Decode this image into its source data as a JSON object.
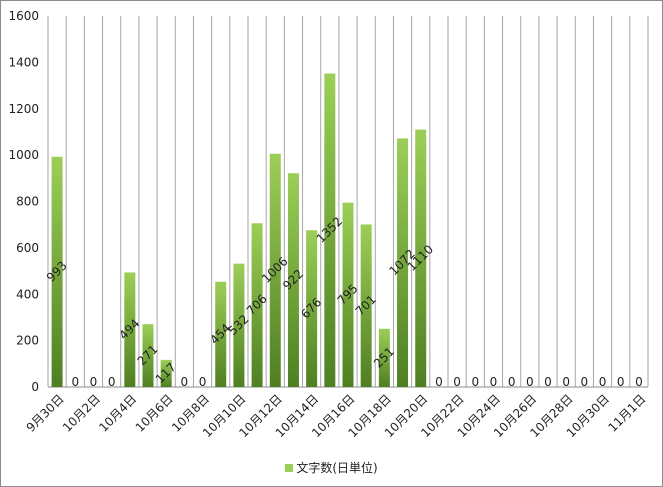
{
  "chart_data": {
    "type": "bar",
    "categories": [
      "9月30日",
      "10月1日",
      "10月2日",
      "10月3日",
      "10月4日",
      "10月5日",
      "10月6日",
      "10月7日",
      "10月8日",
      "10月9日",
      "10月10日",
      "10月11日",
      "10月12日",
      "10月13日",
      "10月14日",
      "10月15日",
      "10月16日",
      "10月17日",
      "10月18日",
      "10月19日",
      "10月20日",
      "10月21日",
      "10月22日",
      "10月23日",
      "10月24日",
      "10月25日",
      "10月26日",
      "10月27日",
      "10月28日",
      "10月29日",
      "10月30日",
      "10月31日",
      "11月1日"
    ],
    "x_tick_labels": [
      "9月30日",
      "10月2日",
      "10月4日",
      "10月6日",
      "10月8日",
      "10月10日",
      "10月12日",
      "10月14日",
      "10月16日",
      "10月18日",
      "10月20日",
      "10月22日",
      "10月24日",
      "10月26日",
      "10月28日",
      "10月30日",
      "11月1日"
    ],
    "series": [
      {
        "name": "文字数(日単位)",
        "values": [
          993,
          0,
          0,
          0,
          494,
          271,
          117,
          0,
          0,
          454,
          532,
          706,
          1006,
          922,
          676,
          1352,
          795,
          701,
          251,
          1072,
          1110,
          0,
          0,
          0,
          0,
          0,
          0,
          0,
          0,
          0,
          0,
          0,
          0
        ]
      }
    ],
    "ylim": [
      0,
      1600
    ],
    "y_ticks": [
      "0",
      "200",
      "400",
      "600",
      "800",
      "1000",
      "1200",
      "1400",
      "1600"
    ],
    "grid": "vertical",
    "legend": "bottom",
    "colors": {
      "bar_top": "#9bcf57",
      "bar_bottom": "#4f7f22",
      "grid": "#a6a6a6"
    }
  }
}
